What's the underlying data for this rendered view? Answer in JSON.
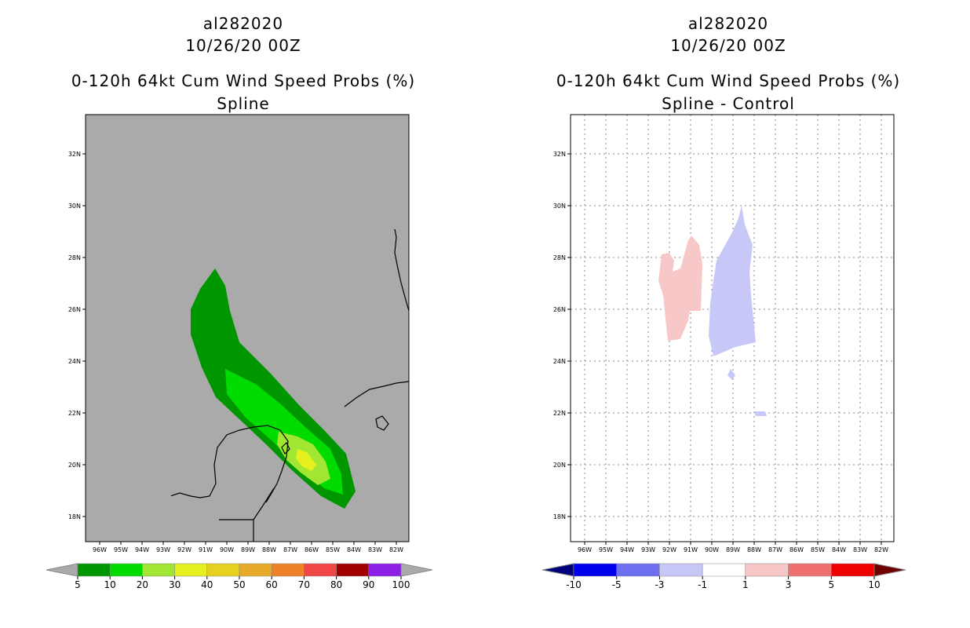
{
  "left": {
    "storm_id": "al282020",
    "datetime": "10/26/20 00Z",
    "product": "0-120h 64kt Cum Wind Speed Probs (%)",
    "subtitle": "Spline",
    "colorbar": {
      "labels": [
        "5",
        "10",
        "20",
        "30",
        "40",
        "50",
        "60",
        "70",
        "80",
        "90",
        "100"
      ],
      "colors": [
        "#009600",
        "#00dc00",
        "#a0e632",
        "#e6f01e",
        "#e6d21e",
        "#e6aa28",
        "#ee8228",
        "#f04646",
        "#a00000",
        "#8c1ee6"
      ]
    }
  },
  "right": {
    "storm_id": "al282020",
    "datetime": "10/26/20 00Z",
    "product": "0-120h 64kt Cum Wind Speed Probs (%)",
    "subtitle": "Spline - Control",
    "colorbar": {
      "labels": [
        "-10",
        "-5",
        "-3",
        "-1",
        "1",
        "3",
        "5",
        "10"
      ],
      "colors": [
        "#0000f0",
        "#6e6ef0",
        "#c8c8f8",
        "#ffffff",
        "#f8c8c8",
        "#f07070",
        "#f00000"
      ]
    }
  },
  "lat_labels": [
    "32N",
    "30N",
    "28N",
    "26N",
    "24N",
    "22N",
    "20N",
    "18N"
  ],
  "lon_labels": [
    "96W",
    "95W",
    "94W",
    "93W",
    "92W",
    "91W",
    "90W",
    "89W",
    "88W",
    "87W",
    "86W",
    "85W",
    "84W",
    "83W",
    "82W"
  ],
  "colors": {
    "map_bg_left": "#aaaaaa",
    "map_bg_right": "#ffffff",
    "coast": "#000000"
  }
}
